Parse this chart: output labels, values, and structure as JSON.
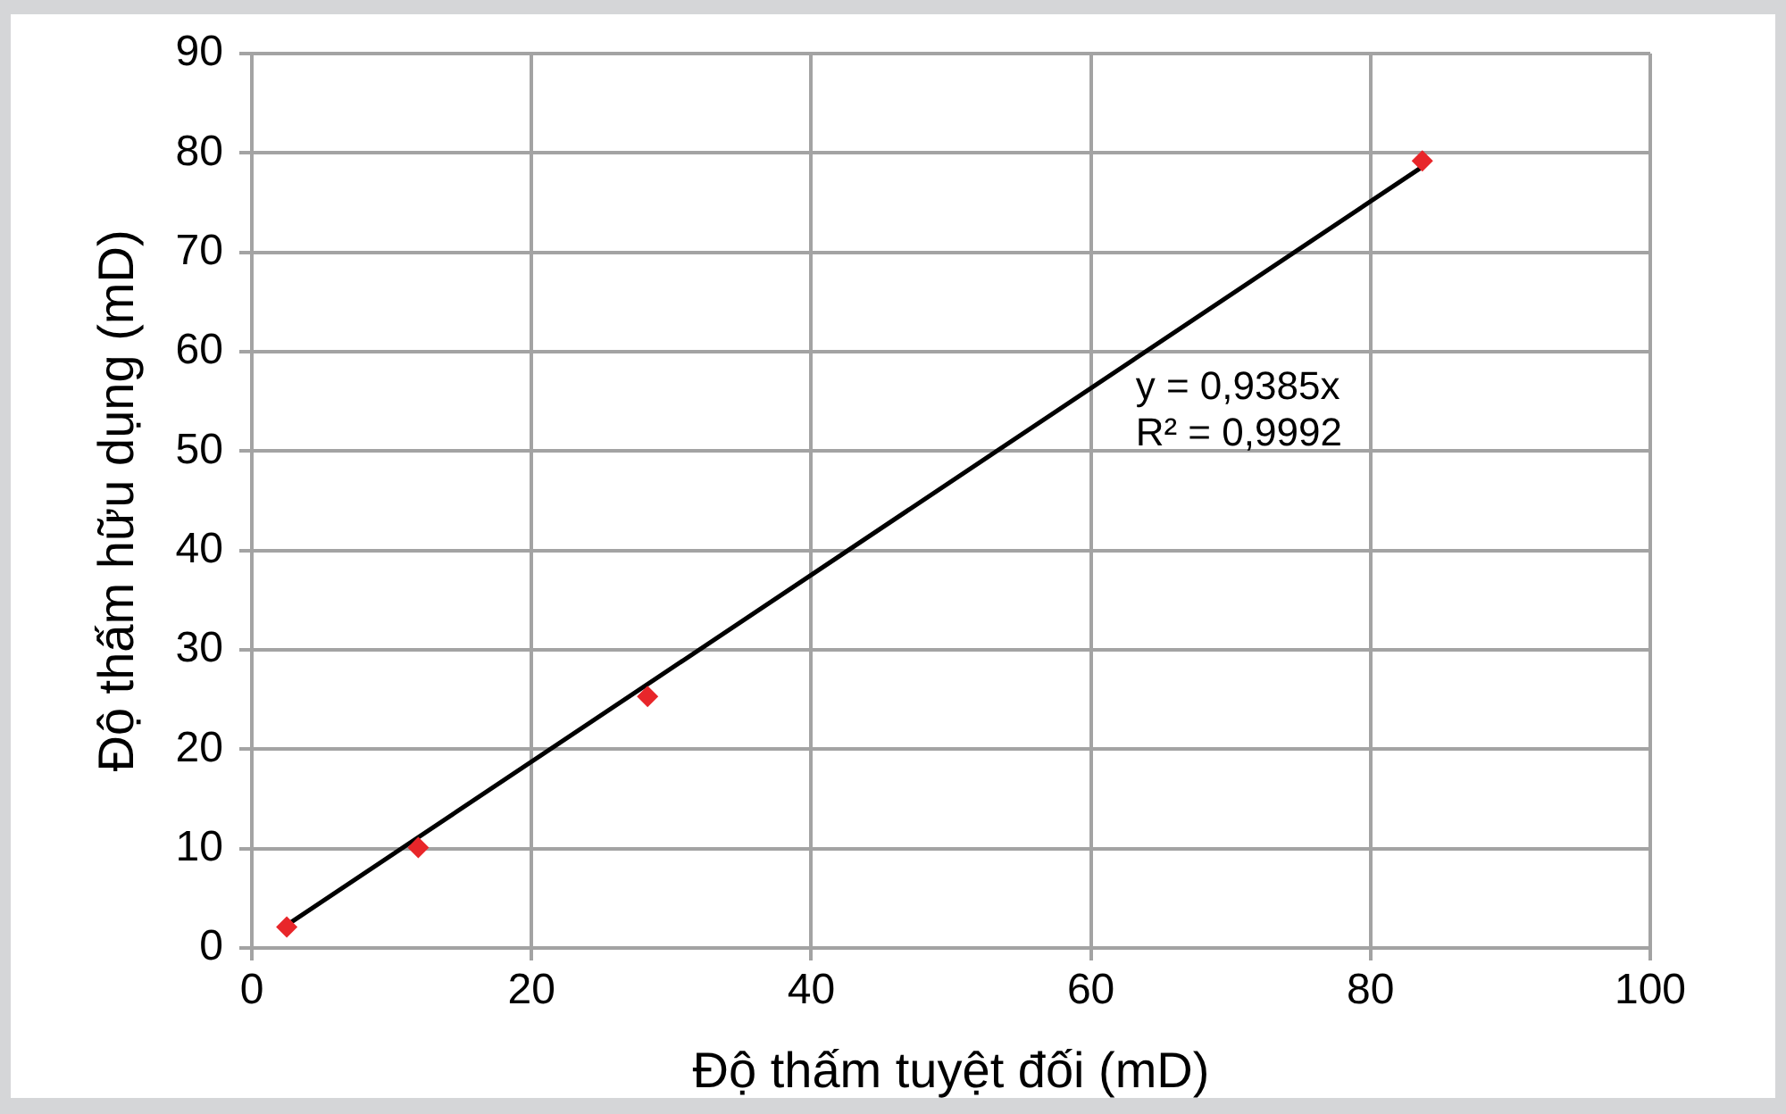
{
  "chart_data": {
    "type": "scatter",
    "xlabel": "Độ thấm tuyệt đối (mD)",
    "ylabel": "Độ thấm hữu dụng (mD)",
    "xlim": [
      0,
      100
    ],
    "xticks": [
      0,
      20,
      40,
      60,
      80,
      100
    ],
    "ylim": [
      0,
      90
    ],
    "yticks": [
      0,
      10,
      20,
      30,
      40,
      50,
      60,
      70,
      80,
      90
    ],
    "grid": true,
    "marker": "diamond",
    "series": [
      {
        "color": "#e8262a",
        "x": [
          2.5,
          11.9,
          28.3,
          83.7
        ],
        "values": [
          2.1,
          10.1,
          25.3,
          79.2
        ]
      },
      {
        "type": "line",
        "color": "#000000",
        "marker": "none",
        "x": [
          2.5,
          83.7
        ],
        "values": [
          2.3,
          78.6
        ]
      }
    ],
    "annotations": [
      "y = 0,9385x",
      "R² = 0,9992"
    ]
  }
}
